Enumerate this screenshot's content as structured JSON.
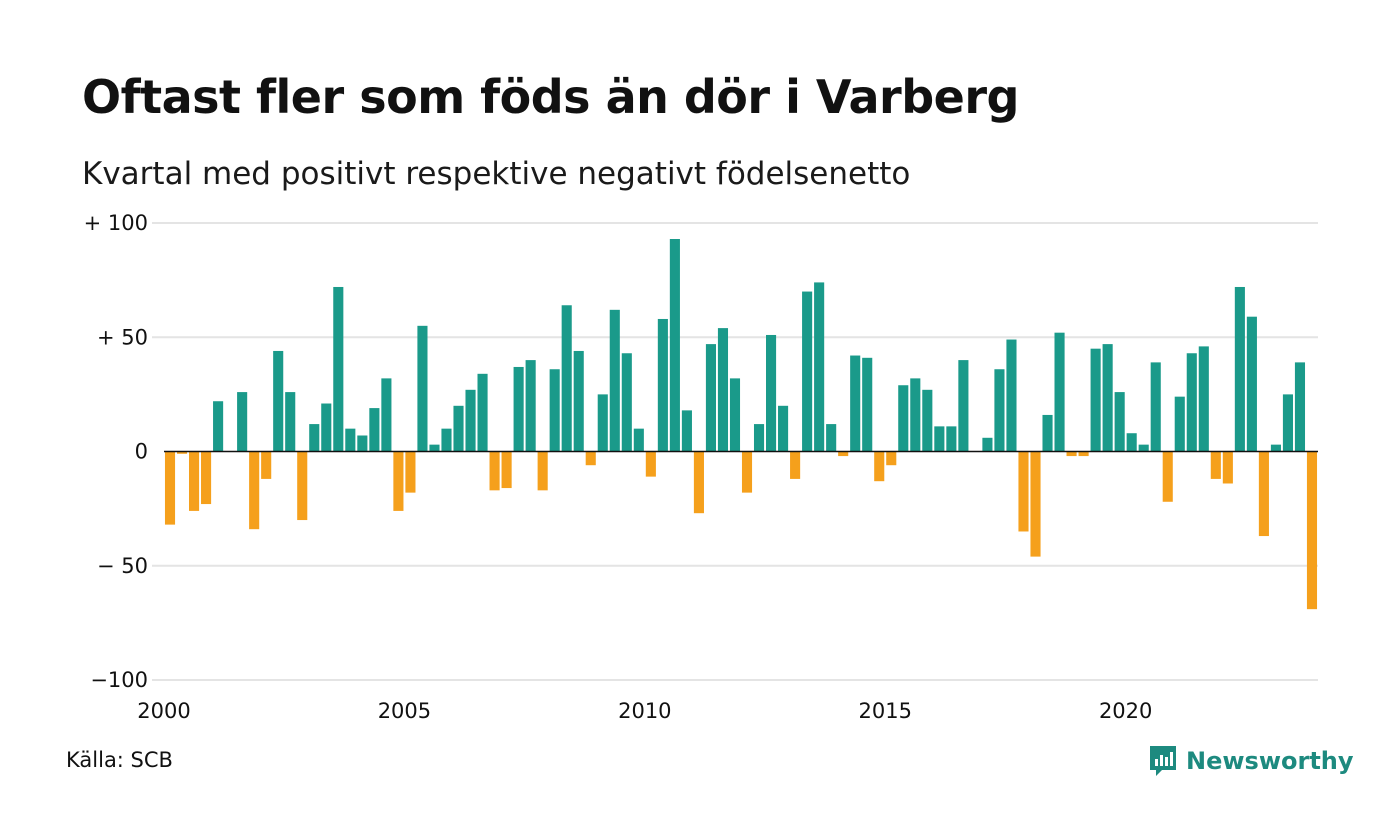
{
  "title": "Oftast fler som föds än dör i Varberg",
  "subtitle": "Kvartal med positivt respektive negativt födelsenetto",
  "source": "Källa: SCB",
  "logo": {
    "name": "Newsworthy",
    "icon": "newsworthy-chart-bubble-icon"
  },
  "colors": {
    "positive": "#1a9a8a",
    "negative": "#f5a01c",
    "grid": "#e4e4e4",
    "axis": "#111111",
    "brand": "#1d8a7f"
  },
  "chart_data": {
    "type": "bar",
    "title": "Oftast fler som föds än dör i Varberg",
    "subtitle": "Kvartal med positivt respektive negativt födelsenetto",
    "xlabel": "",
    "ylabel": "",
    "ylim": [
      -100,
      100
    ],
    "y_ticks": [
      {
        "value": 100,
        "label": "+ 100"
      },
      {
        "value": 50,
        "label": "+  50"
      },
      {
        "value": 0,
        "label": "0"
      },
      {
        "value": -50,
        "label": "− 50"
      },
      {
        "value": -100,
        "label": "−100"
      }
    ],
    "x_ticks": [
      "2000",
      "2005",
      "2010",
      "2015",
      "2020"
    ],
    "x_tick_values": [
      2000,
      2005,
      2010,
      2015,
      2020
    ],
    "start_year": 2000,
    "periods_per_year": 4,
    "grid": true,
    "legend": "none",
    "values": [
      -32,
      -1,
      -26,
      -23,
      22,
      0,
      26,
      -34,
      -12,
      44,
      26,
      -30,
      12,
      21,
      72,
      10,
      7,
      19,
      32,
      -26,
      -18,
      55,
      3,
      10,
      20,
      27,
      34,
      -17,
      -16,
      37,
      40,
      -17,
      36,
      64,
      44,
      -6,
      25,
      62,
      43,
      10,
      -11,
      58,
      93,
      18,
      -27,
      47,
      54,
      32,
      -18,
      12,
      51,
      20,
      -12,
      70,
      74,
      12,
      -2,
      42,
      41,
      -13,
      -6,
      29,
      32,
      27,
      11,
      11,
      40,
      0,
      6,
      36,
      49,
      -35,
      -46,
      16,
      52,
      -2,
      -2,
      45,
      47,
      26,
      8,
      3,
      39,
      -22,
      24,
      43,
      46,
      -12,
      -14,
      72,
      59,
      -37,
      3,
      25,
      39,
      -69
    ]
  }
}
